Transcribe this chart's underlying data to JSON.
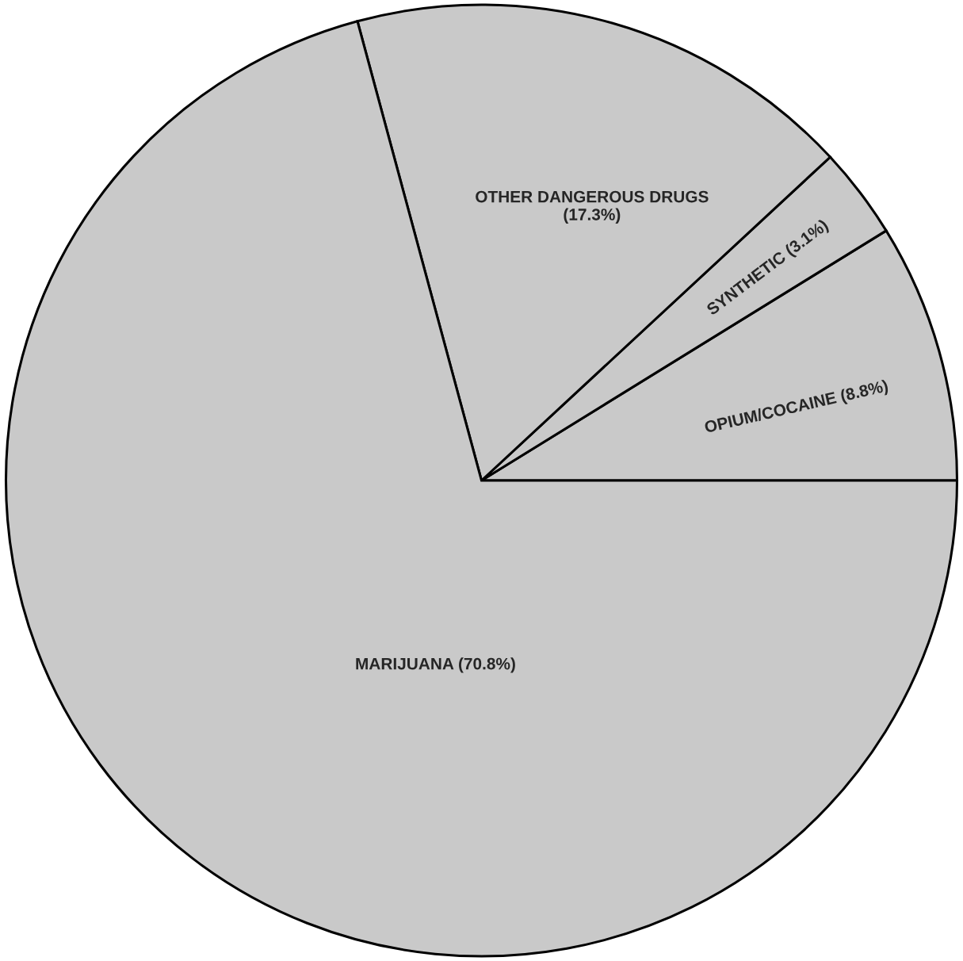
{
  "chart_data": {
    "type": "pie",
    "categories": [
      "OPIUM/COCAINE",
      "SYNTHETIC",
      "OTHER DANGEROUS DRUGS",
      "MARIJUANA"
    ],
    "values": [
      8.8,
      3.1,
      17.3,
      70.8
    ],
    "value_labels": [
      "(8.8%)",
      "(3.1%)",
      "(17.3%)",
      "(70.8%)"
    ],
    "colors": [
      "#c9c9c9",
      "#c9c9c9",
      "#c9c9c9",
      "#c9c9c9"
    ]
  }
}
